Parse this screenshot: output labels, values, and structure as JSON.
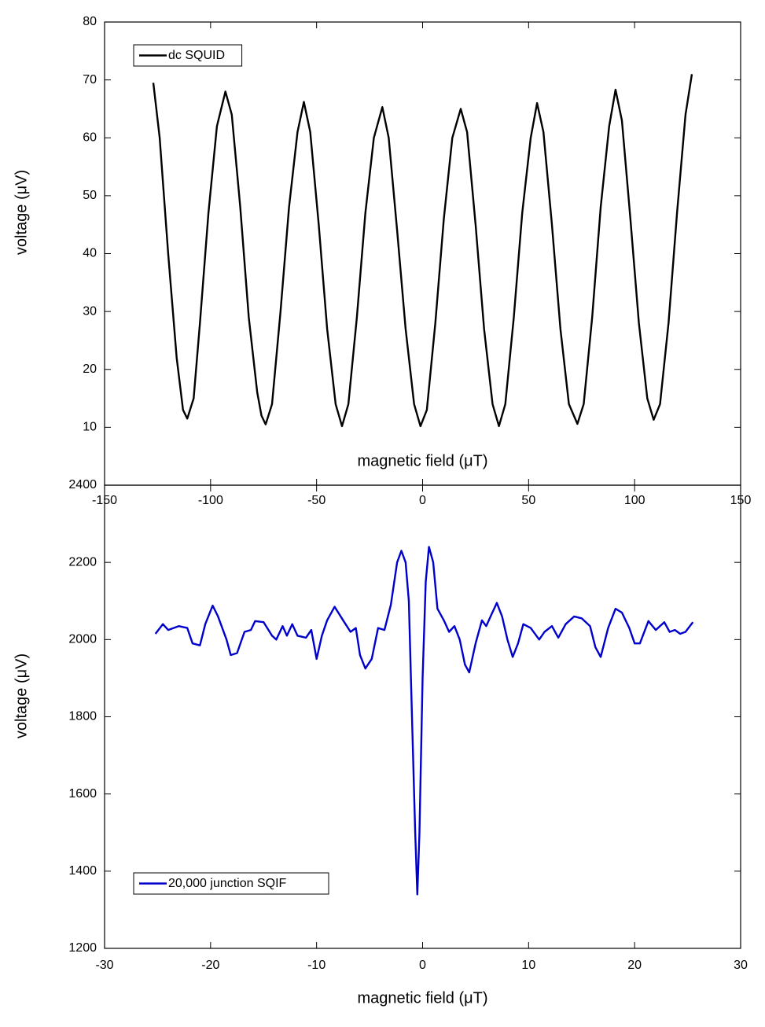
{
  "chart_data": [
    {
      "type": "line",
      "xlabel": "magnetic field (μT)",
      "ylabel": "voltage (μV)",
      "xlim": [
        -150,
        150
      ],
      "xticks": [
        -150,
        -100,
        -50,
        0,
        50,
        100,
        150
      ],
      "ylim": [
        0,
        80
      ],
      "yticks": [
        10,
        20,
        30,
        40,
        50,
        60,
        70,
        80
      ],
      "legend": "upper left",
      "grid": false,
      "x": [
        -127,
        -124,
        -120,
        -116,
        -113,
        -111,
        -108,
        -105,
        -101,
        -97,
        -93,
        -90,
        -86,
        -82,
        -78,
        -76,
        -74,
        -71,
        -67,
        -63,
        -59,
        -56,
        -53,
        -49,
        -45,
        -41,
        -38,
        -35,
        -31,
        -27,
        -23,
        -19,
        -16,
        -12,
        -8,
        -4,
        -1,
        2,
        6,
        10,
        14,
        18,
        21,
        25,
        29,
        33,
        36,
        39,
        43,
        47,
        51,
        54,
        57,
        61,
        65,
        69,
        73,
        76,
        80,
        84,
        88,
        91,
        94,
        98,
        102,
        106,
        109,
        112,
        116,
        120,
        124,
        127
      ],
      "series": [
        {
          "name": "dc SQUID",
          "color": "#000000",
          "values": [
            69.5,
            60,
            40,
            22,
            13,
            11.5,
            15,
            28,
            47,
            62,
            68,
            64,
            48,
            29,
            16,
            12,
            10.5,
            14,
            30,
            48,
            61,
            66.2,
            61,
            45,
            27,
            14,
            10.2,
            14,
            29,
            47,
            60,
            65.3,
            60,
            44,
            27,
            14,
            10.2,
            13,
            28,
            46,
            60,
            65,
            61,
            45,
            27,
            14,
            10.2,
            14,
            29,
            47,
            60,
            66,
            61,
            45,
            27,
            14,
            10.6,
            14,
            29,
            48,
            62,
            68.3,
            63,
            46,
            28,
            15,
            11.3,
            14,
            28,
            47,
            64,
            71
          ]
        }
      ]
    },
    {
      "type": "line",
      "xlabel": "magnetic field (μT)",
      "ylabel": "voltage (μV)",
      "xlim": [
        -30,
        30
      ],
      "xticks": [
        -30,
        -20,
        -10,
        0,
        10,
        20,
        30
      ],
      "ylim": [
        1200,
        2400
      ],
      "yticks": [
        1200,
        1400,
        1600,
        1800,
        2000,
        2200,
        2400
      ],
      "legend": "lower left",
      "grid": false,
      "x": [
        -25.2,
        -24.5,
        -24,
        -23,
        -22.2,
        -21.7,
        -21,
        -20.5,
        -19.8,
        -19.3,
        -18.5,
        -18.1,
        -17.5,
        -16.8,
        -16.2,
        -15.8,
        -15,
        -14.2,
        -13.8,
        -13.2,
        -12.8,
        -12.3,
        -11.8,
        -11,
        -10.5,
        -10,
        -9.5,
        -9,
        -8.3,
        -7.5,
        -6.8,
        -6.3,
        -5.9,
        -5.4,
        -4.8,
        -4.2,
        -3.6,
        -3,
        -2.4,
        -2,
        -1.6,
        -1.3,
        -1,
        -0.7,
        -0.5,
        -0.3,
        0,
        0.3,
        0.6,
        1,
        1.4,
        2,
        2.5,
        3,
        3.5,
        4,
        4.4,
        5,
        5.6,
        6,
        6.5,
        7,
        7.5,
        8,
        8.5,
        9,
        9.5,
        10.2,
        11,
        11.5,
        12.2,
        12.8,
        13.5,
        14.3,
        15,
        15.8,
        16.3,
        16.8,
        17.5,
        18.2,
        18.8,
        19.5,
        20,
        20.5,
        21.3,
        22,
        22.8,
        23.3,
        23.8,
        24.3,
        24.8,
        25.5
      ],
      "series": [
        {
          "name": "20,000 junction SQIF",
          "color": "#0000cc",
          "values": [
            2015,
            2040,
            2025,
            2035,
            2030,
            1990,
            1985,
            2040,
            2088,
            2060,
            2000,
            1960,
            1965,
            2020,
            2025,
            2048,
            2045,
            2010,
            2000,
            2035,
            2010,
            2040,
            2010,
            2005,
            2025,
            1950,
            2010,
            2050,
            2085,
            2050,
            2020,
            2030,
            1960,
            1925,
            1950,
            2030,
            2025,
            2090,
            2200,
            2230,
            2200,
            2100,
            1800,
            1500,
            1340,
            1500,
            1900,
            2150,
            2240,
            2200,
            2080,
            2050,
            2020,
            2035,
            2000,
            1935,
            1915,
            1990,
            2050,
            2035,
            2065,
            2095,
            2060,
            2000,
            1955,
            1990,
            2040,
            2030,
            2000,
            2020,
            2035,
            2005,
            2040,
            2060,
            2055,
            2035,
            1980,
            1955,
            2030,
            2080,
            2070,
            2030,
            1990,
            1990,
            2048,
            2025,
            2045,
            2020,
            2025,
            2015,
            2020,
            2045
          ]
        }
      ]
    }
  ]
}
